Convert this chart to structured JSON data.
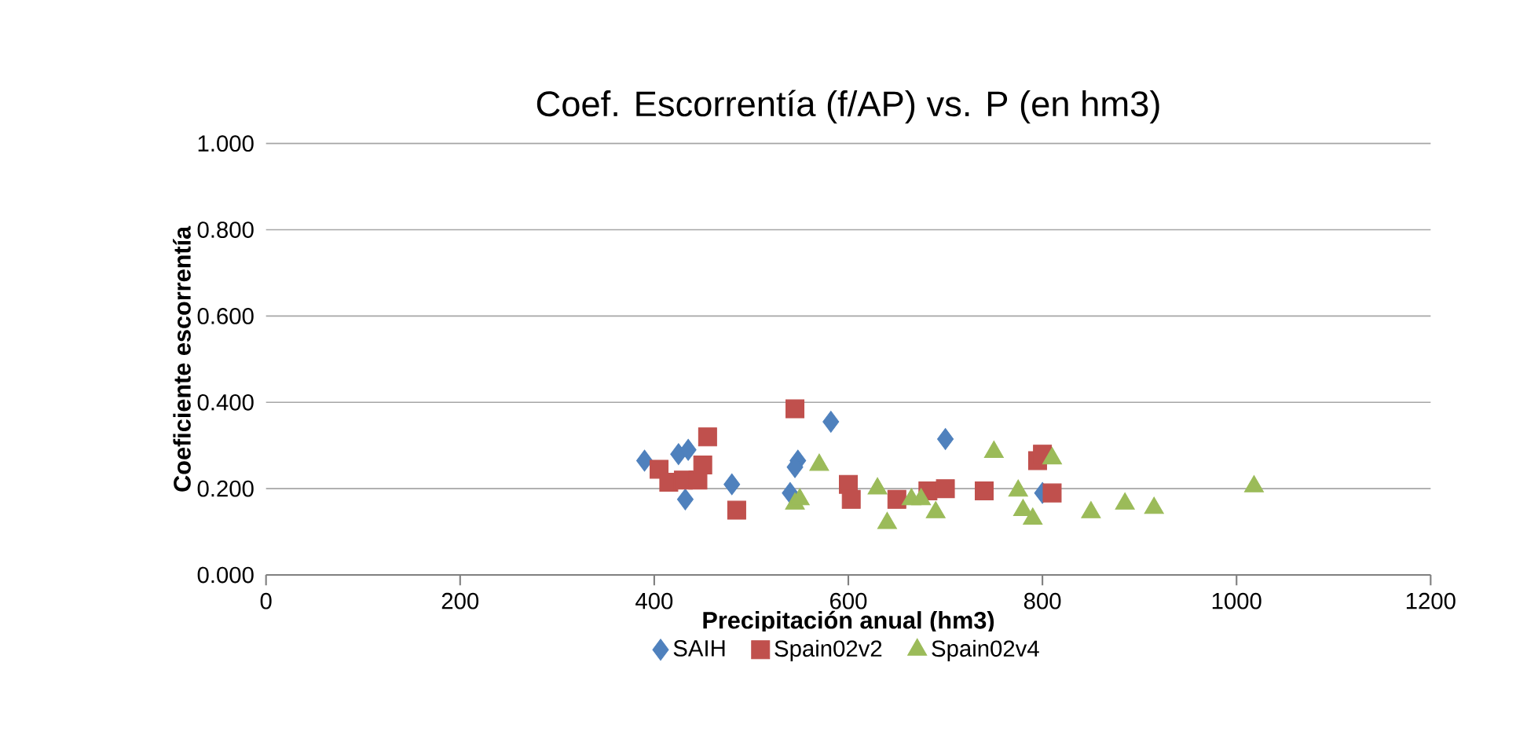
{
  "chart_data": {
    "type": "scatter",
    "title": "Coef. Escorrentía (f/AP) vs. P (en hm3)",
    "xlabel": "Precipitación anual (hm3)",
    "ylabel": "Coeficiente escorrentía",
    "xlim": [
      0,
      1200
    ],
    "xticks": [
      0,
      200,
      400,
      600,
      800,
      1000,
      1200
    ],
    "ylim": [
      0,
      1
    ],
    "yticks": [
      {
        "value": 0,
        "label": "0.000"
      },
      {
        "value": 0.2,
        "label": "0.200"
      },
      {
        "value": 0.4,
        "label": "0.400"
      },
      {
        "value": 0.6,
        "label": "0.600"
      },
      {
        "value": 0.8,
        "label": "0.800"
      },
      {
        "value": 1,
        "label": "1.000"
      }
    ],
    "grid": "y",
    "legend": "bottom",
    "series": [
      {
        "name": "SAIH",
        "color": "#4f81bd",
        "marker": "diamond",
        "x": [
          390,
          425,
          435,
          432,
          480,
          540,
          545,
          548,
          545,
          582,
          600,
          700,
          800
        ],
        "values": [
          0.265,
          0.28,
          0.29,
          0.175,
          0.21,
          0.19,
          null,
          0.265,
          0.25,
          0.355,
          null,
          0.315,
          0.19
        ]
      },
      {
        "name": "Spain02v2",
        "color": "#c0504d",
        "marker": "square",
        "x": [
          405,
          415,
          430,
          445,
          450,
          455,
          485,
          545,
          600,
          603,
          650,
          682,
          700,
          740,
          795,
          800,
          810
        ],
        "values": [
          0.245,
          0.215,
          0.22,
          0.22,
          0.255,
          0.32,
          0.15,
          0.385,
          0.21,
          0.175,
          0.175,
          0.195,
          0.2,
          0.195,
          0.265,
          0.28,
          0.19
        ]
      },
      {
        "name": "Spain02v4",
        "color": "#9bbb59",
        "marker": "triangle",
        "x": [
          545,
          550,
          570,
          630,
          640,
          665,
          675,
          690,
          750,
          775,
          780,
          790,
          810,
          850,
          885,
          915,
          1018
        ],
        "values": [
          0.165,
          0.175,
          0.255,
          0.2,
          0.12,
          0.175,
          0.175,
          0.145,
          0.285,
          0.195,
          0.15,
          0.13,
          0.27,
          0.145,
          0.165,
          0.155,
          0.205
        ]
      }
    ]
  }
}
